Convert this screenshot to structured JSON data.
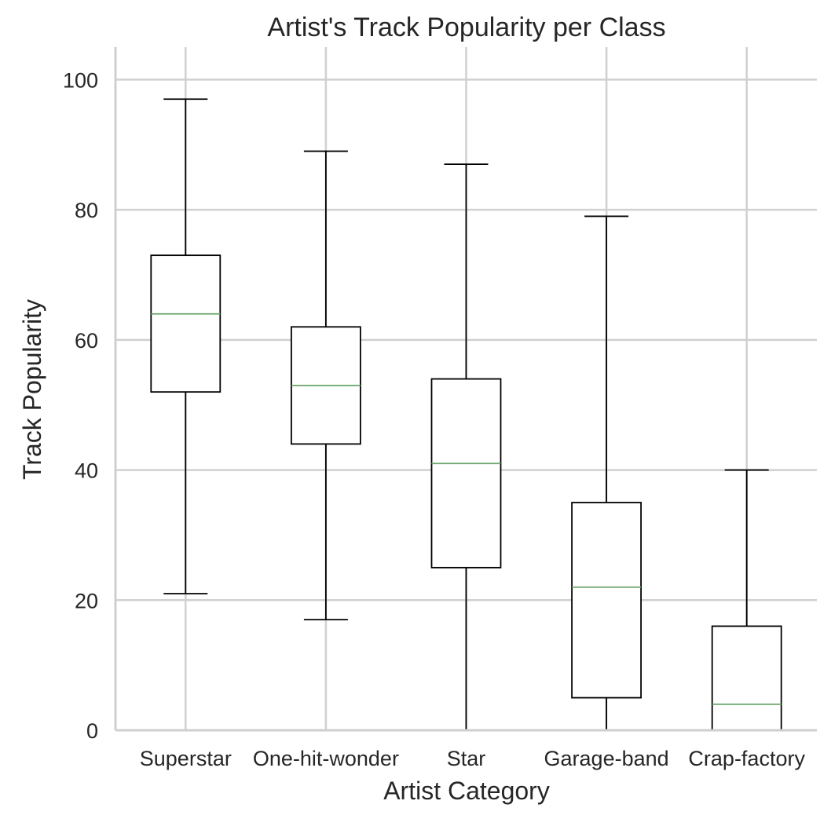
{
  "chart_data": {
    "type": "box",
    "title": "Artist's Track Popularity per Class",
    "xlabel": "Artist Category",
    "ylabel": "Track Popularity",
    "ylim": [
      0,
      105
    ],
    "yticks": [
      0,
      20,
      40,
      60,
      80,
      100
    ],
    "grid": true,
    "categories": [
      "Superstar",
      "One-hit-wonder",
      "Star",
      "Garage-band",
      "Crap-factory"
    ],
    "boxes": [
      {
        "category": "Superstar",
        "whisker_low": 21,
        "q1": 52,
        "median": 64,
        "q3": 73,
        "whisker_high": 97
      },
      {
        "category": "One-hit-wonder",
        "whisker_low": 17,
        "q1": 44,
        "median": 53,
        "q3": 62,
        "whisker_high": 89
      },
      {
        "category": "Star",
        "whisker_low": 0,
        "q1": 25,
        "median": 41,
        "q3": 54,
        "whisker_high": 87
      },
      {
        "category": "Garage-band",
        "whisker_low": 0,
        "q1": 5,
        "median": 22,
        "q3": 35,
        "whisker_high": 79
      },
      {
        "category": "Crap-factory",
        "whisker_low": 0,
        "q1": 0,
        "median": 4,
        "q3": 16,
        "whisker_high": 40
      }
    ],
    "colors": {
      "box": "#000000",
      "median": "#6aa56a",
      "grid": "#d0d0d0",
      "axis": "#cfcfcf",
      "text": "#262626"
    }
  }
}
